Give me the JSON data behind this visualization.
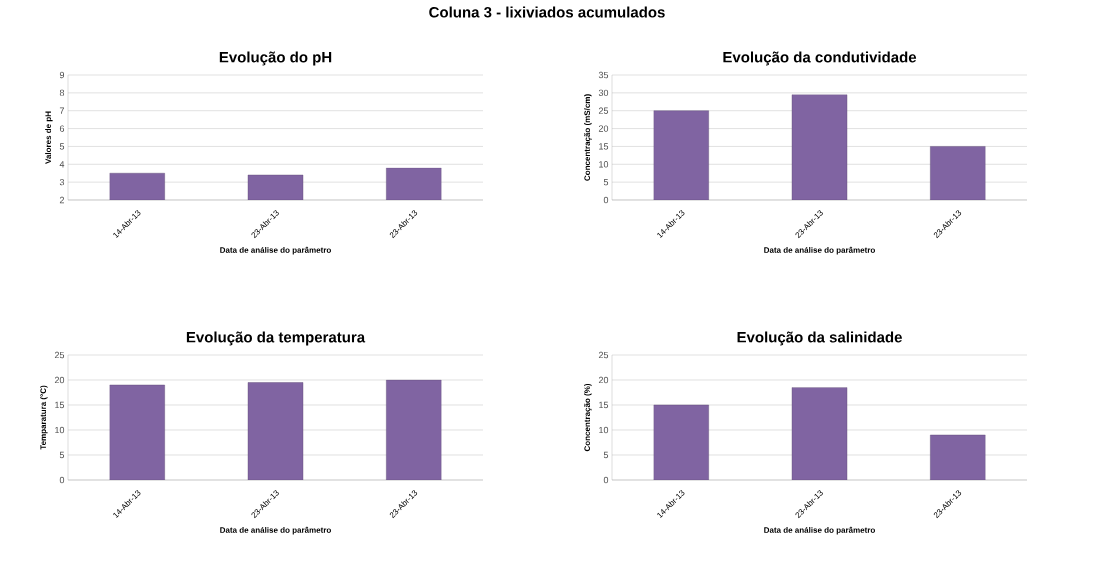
{
  "chart_data": [
    {
      "type": "bar",
      "title": "Evolução do pH",
      "annotations": [
        "Coluna 3 - lixiviados acumulados"
      ],
      "xlabel": "Data de análise do parâmetro",
      "ylabel": "Valores de pH",
      "categories": [
        "14-Abr-13",
        "23-Abr-13",
        "23-Abr-13"
      ],
      "values": [
        3.5,
        3.4,
        3.8
      ],
      "color": "#8064a2",
      "ylim": [
        2,
        9
      ],
      "yticks": [
        2,
        3,
        4,
        5,
        6,
        7,
        8,
        9
      ],
      "grid": "y"
    },
    {
      "type": "bar",
      "title": "Evolução da condutividade",
      "xlabel": "Data de análise do parâmetro",
      "ylabel": "Concentração (mS/cm)",
      "categories": [
        "14-Abr-13",
        "23-Abr-13",
        "23-Abr-13"
      ],
      "values": [
        25,
        29.5,
        15
      ],
      "color": "#8064a2",
      "ylim": [
        0,
        35
      ],
      "yticks": [
        0,
        5,
        10,
        15,
        20,
        25,
        30,
        35
      ],
      "grid": "y"
    },
    {
      "type": "bar",
      "title": "Evolução da temperatura",
      "xlabel": "Data de análise do parâmetro",
      "ylabel": "Temparatura (°C)",
      "categories": [
        "14-Abr-13",
        "23-Abr-13",
        "23-Abr-13"
      ],
      "values": [
        19,
        19.5,
        20
      ],
      "color": "#8064a2",
      "ylim": [
        0,
        25
      ],
      "yticks": [
        0,
        5,
        10,
        15,
        20,
        25
      ],
      "grid": "y"
    },
    {
      "type": "bar",
      "title": "Evolução da salinidade",
      "xlabel": "Data de análise do parâmetro",
      "ylabel": "Concentração (%)",
      "categories": [
        "14-Abr-13",
        "23-Abr-13",
        "23-Abr-13"
      ],
      "values": [
        15,
        18.5,
        9
      ],
      "color": "#8064a2",
      "ylim": [
        0,
        25
      ],
      "yticks": [
        0,
        5,
        10,
        15,
        20,
        25
      ],
      "grid": "y"
    }
  ]
}
